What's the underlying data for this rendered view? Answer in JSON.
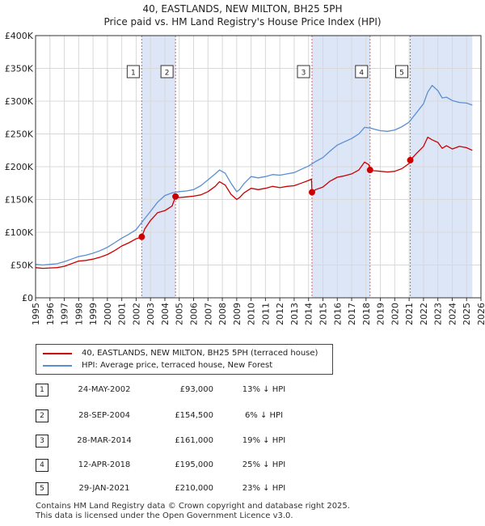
{
  "chart_data": {
    "type": "line",
    "title": "40, EASTLANDS, NEW MILTON, BH25 5PH",
    "subtitle": "Price paid vs. HM Land Registry's House Price Index (HPI)",
    "xlabel": "",
    "ylabel": "",
    "xlim": [
      1995,
      2026
    ],
    "ylim": [
      0,
      400000
    ],
    "y_ticks": [
      0,
      50000,
      100000,
      150000,
      200000,
      250000,
      300000,
      350000,
      400000
    ],
    "y_tick_labels": [
      "£0",
      "£50K",
      "£100K",
      "£150K",
      "£200K",
      "£250K",
      "£300K",
      "£350K",
      "£400K"
    ],
    "x_ticks": [
      1995,
      1996,
      1997,
      1998,
      1999,
      2000,
      2001,
      2002,
      2003,
      2004,
      2005,
      2006,
      2007,
      2008,
      2009,
      2010,
      2011,
      2012,
      2013,
      2014,
      2015,
      2016,
      2017,
      2018,
      2019,
      2020,
      2021,
      2022,
      2023,
      2024,
      2025,
      2026
    ],
    "grid": true,
    "colors": {
      "property": "#cc0000",
      "hpi": "#5b8fd0",
      "shade": "#dde6f7",
      "vline": "#e06060"
    },
    "series": [
      {
        "name": "40, EASTLANDS, NEW MILTON, BH25 5PH (terraced house)",
        "color": "#cc0000",
        "x": [
          1995.0,
          1995.5,
          1996.0,
          1996.5,
          1997.0,
          1997.5,
          1998.0,
          1998.5,
          1999.0,
          1999.5,
          2000.0,
          2000.5,
          2001.0,
          2001.5,
          2002.0,
          2002.39,
          2002.6,
          2003.0,
          2003.5,
          2004.0,
          2004.5,
          2004.74,
          2005.0,
          2005.5,
          2006.0,
          2006.5,
          2007.0,
          2007.5,
          2007.8,
          2008.2,
          2008.6,
          2009.0,
          2009.2,
          2009.5,
          2010.0,
          2010.5,
          2011.0,
          2011.5,
          2012.0,
          2012.5,
          2013.0,
          2013.5,
          2014.0,
          2014.2,
          2014.24,
          2014.5,
          2015.0,
          2015.5,
          2016.0,
          2016.5,
          2017.0,
          2017.5,
          2017.9,
          2018.2,
          2018.28,
          2018.5,
          2019.0,
          2019.5,
          2020.0,
          2020.5,
          2021.0,
          2021.08,
          2021.5,
          2022.0,
          2022.3,
          2022.6,
          2023.0,
          2023.3,
          2023.6,
          2024.0,
          2024.5,
          2025.0,
          2025.4
        ],
        "values": [
          46000,
          45000,
          45500,
          46000,
          48000,
          52000,
          56000,
          57000,
          59000,
          62000,
          66000,
          72000,
          79000,
          84000,
          90000,
          93000,
          105000,
          118000,
          130000,
          133000,
          140000,
          154500,
          153000,
          154000,
          155000,
          157000,
          162000,
          170000,
          177000,
          172000,
          158000,
          150000,
          153000,
          160000,
          167000,
          165000,
          167000,
          170000,
          168000,
          170000,
          171000,
          175000,
          179000,
          181000,
          161000,
          165000,
          169000,
          178000,
          184000,
          186000,
          189000,
          195000,
          207000,
          203000,
          195000,
          194000,
          193000,
          192000,
          193000,
          197000,
          205000,
          210000,
          220000,
          231000,
          245000,
          241000,
          237000,
          228000,
          232000,
          227000,
          231000,
          229000,
          225000
        ]
      },
      {
        "name": "HPI: Average price, terraced house, New Forest",
        "color": "#5b8fd0",
        "x": [
          1995.0,
          1995.5,
          1996.0,
          1996.5,
          1997.0,
          1997.5,
          1998.0,
          1998.5,
          1999.0,
          1999.5,
          2000.0,
          2000.5,
          2001.0,
          2001.5,
          2002.0,
          2002.5,
          2003.0,
          2003.5,
          2004.0,
          2004.5,
          2005.0,
          2005.5,
          2006.0,
          2006.5,
          2007.0,
          2007.5,
          2007.8,
          2008.2,
          2008.6,
          2009.0,
          2009.2,
          2009.5,
          2010.0,
          2010.5,
          2011.0,
          2011.5,
          2012.0,
          2012.5,
          2013.0,
          2013.5,
          2014.0,
          2014.5,
          2015.0,
          2015.5,
          2016.0,
          2016.5,
          2017.0,
          2017.5,
          2017.9,
          2018.3,
          2018.6,
          2019.0,
          2019.5,
          2020.0,
          2020.5,
          2021.0,
          2021.5,
          2022.0,
          2022.3,
          2022.6,
          2023.0,
          2023.3,
          2023.6,
          2024.0,
          2024.5,
          2025.0,
          2025.4
        ],
        "values": [
          51000,
          50000,
          51000,
          52000,
          55000,
          59000,
          63000,
          65000,
          68000,
          72000,
          77000,
          84000,
          91000,
          97000,
          104000,
          118000,
          132000,
          146000,
          156000,
          160000,
          162000,
          163000,
          165000,
          171000,
          180000,
          189000,
          195000,
          190000,
          175000,
          162000,
          165000,
          174000,
          185000,
          183000,
          185000,
          188000,
          187000,
          189000,
          191000,
          196000,
          201000,
          208000,
          214000,
          224000,
          233000,
          238000,
          243000,
          250000,
          260000,
          259000,
          257000,
          255000,
          254000,
          256000,
          261000,
          268000,
          282000,
          296000,
          314000,
          324000,
          316000,
          305000,
          306000,
          301000,
          298000,
          297000,
          294000
        ]
      }
    ],
    "shaded_ranges": [
      [
        2002.39,
        2004.74
      ],
      [
        2014.24,
        2018.28
      ],
      [
        2021.08,
        2025.4
      ]
    ],
    "sales": [
      {
        "num": "1",
        "x": 2002.39,
        "price": 93000,
        "date": "24-MAY-2002",
        "price_label": "£93,000",
        "hpi_label": "13% ↓ HPI"
      },
      {
        "num": "2",
        "x": 2004.74,
        "price": 154500,
        "date": "28-SEP-2004",
        "price_label": "£154,500",
        "hpi_label": "6% ↓ HPI"
      },
      {
        "num": "3",
        "x": 2014.24,
        "price": 161000,
        "date": "28-MAR-2014",
        "price_label": "£161,000",
        "hpi_label": "19% ↓ HPI"
      },
      {
        "num": "4",
        "x": 2018.28,
        "price": 195000,
        "date": "12-APR-2018",
        "price_label": "£195,000",
        "hpi_label": "25% ↓ HPI"
      },
      {
        "num": "5",
        "x": 2021.08,
        "price": 210000,
        "date": "29-JAN-2021",
        "price_label": "£210,000",
        "hpi_label": "23% ↓ HPI"
      }
    ]
  },
  "legend": {
    "property_label": "40, EASTLANDS, NEW MILTON, BH25 5PH (terraced house)",
    "hpi_label": "HPI: Average price, terraced house, New Forest"
  },
  "footer": {
    "line1": "Contains HM Land Registry data © Crown copyright and database right 2025.",
    "line2": "This data is licensed under the Open Government Licence v3.0."
  }
}
